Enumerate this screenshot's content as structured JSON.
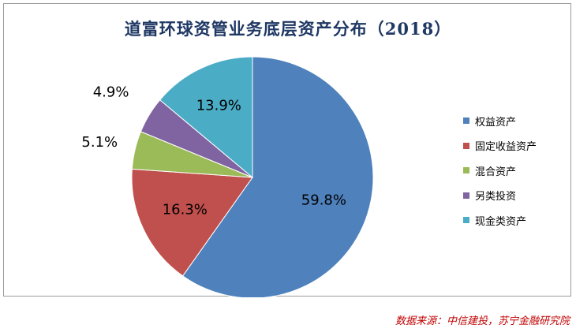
{
  "chart_data": {
    "type": "pie",
    "title": "道富环球资管业务底层资产分布（2018）",
    "categories": [
      "权益资产",
      "固定收益资产",
      "混合资产",
      "另类投资",
      "现金类资产"
    ],
    "values": [
      59.8,
      16.3,
      5.1,
      4.9,
      13.9
    ],
    "labels": [
      "59.8%",
      "16.3%",
      "5.1%",
      "4.9%",
      "13.9%"
    ],
    "colors": [
      "#4f81bd",
      "#c0504d",
      "#9bbb59",
      "#8064a2",
      "#4bacc6"
    ],
    "legend_position": "right"
  },
  "source_note": "数据来源：中信建投，苏宁金融研究院"
}
